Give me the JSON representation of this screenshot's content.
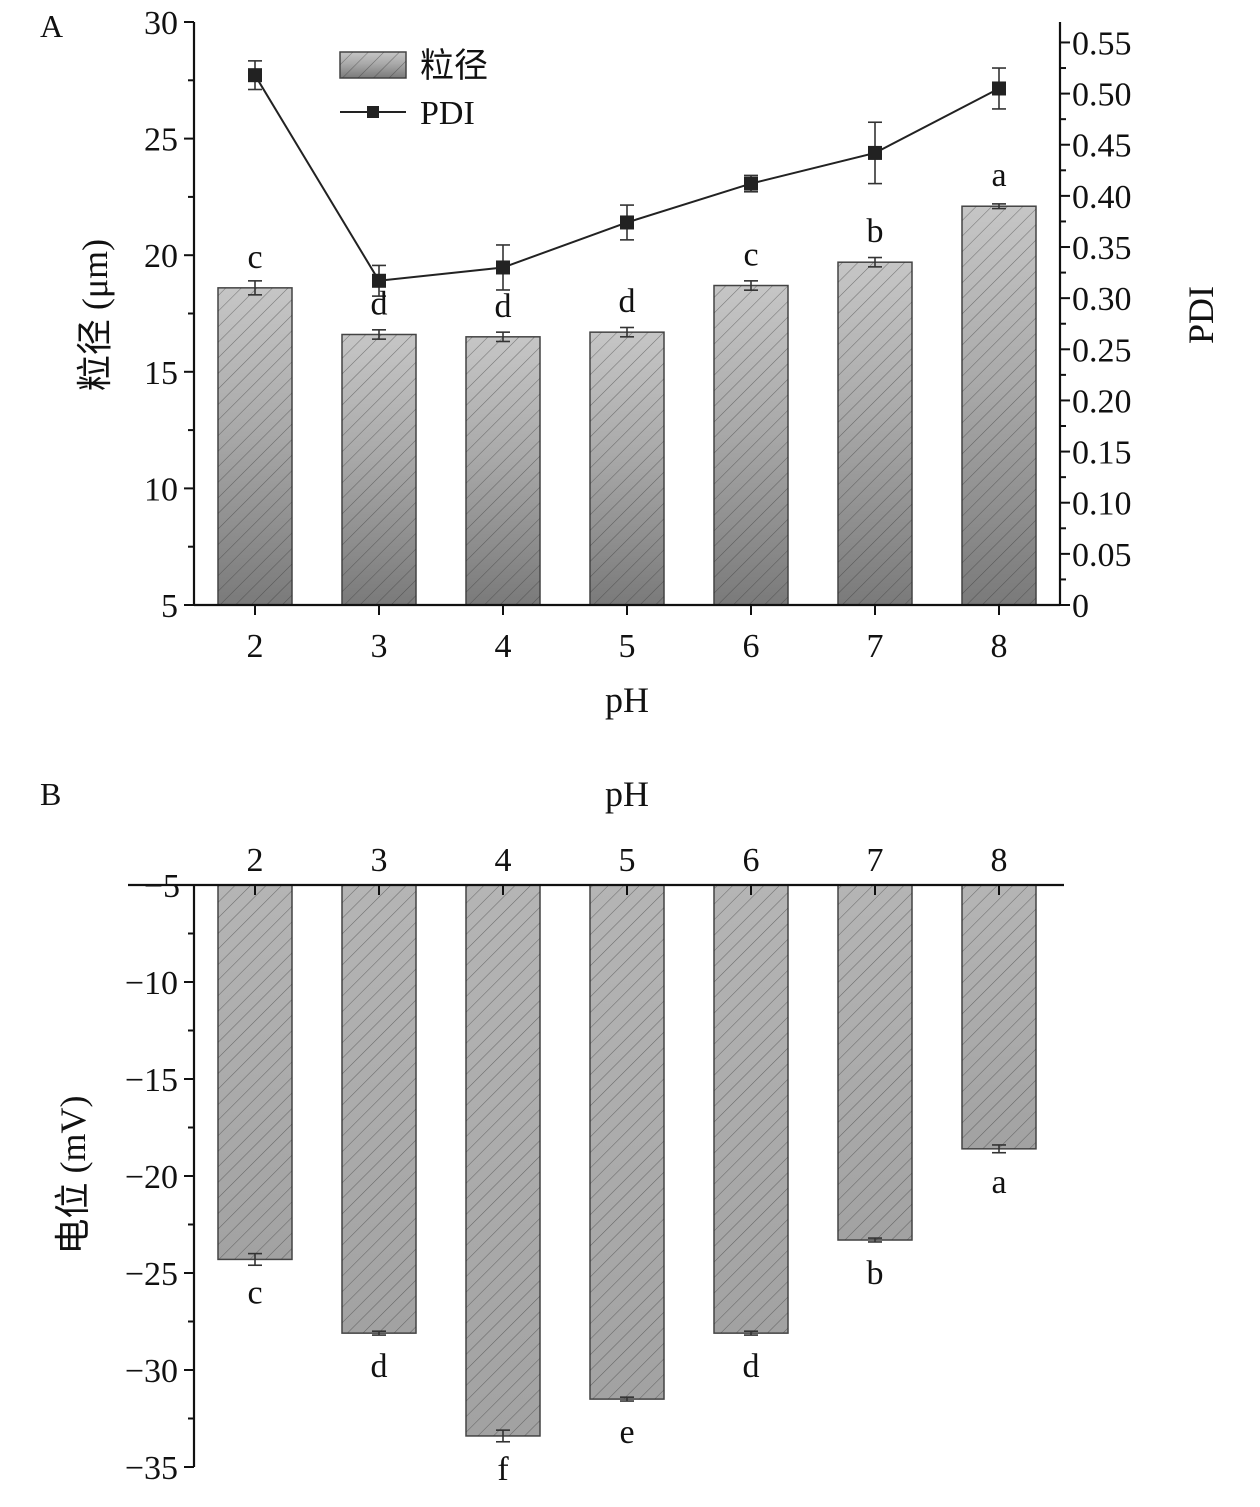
{
  "chart_data": [
    {
      "panel": "A",
      "type": "bar",
      "xlabel": "pH",
      "ylabel": "粒径 (μm)",
      "y2label": "PDI",
      "categories": [
        "2",
        "3",
        "4",
        "5",
        "6",
        "7",
        "8"
      ],
      "ylim": [
        5,
        30
      ],
      "yticks": [
        "5",
        "10",
        "15",
        "20",
        "25",
        "30"
      ],
      "y2lim": [
        0,
        0.57
      ],
      "y2ticks": [
        "0",
        "0.05",
        "0.10",
        "0.15",
        "0.20",
        "0.25",
        "0.30",
        "0.35",
        "0.40",
        "0.45",
        "0.50",
        "0.55"
      ],
      "legend": {
        "position": "top-left",
        "bar_label": "粒径",
        "line_label": "PDI"
      },
      "series": [
        {
          "name": "粒径",
          "kind": "bar",
          "axis": "left",
          "values": [
            18.6,
            16.6,
            16.5,
            16.7,
            18.7,
            19.7,
            22.1
          ],
          "errors": [
            0.3,
            0.2,
            0.2,
            0.2,
            0.2,
            0.2,
            0.1
          ],
          "letters": [
            "c",
            "d",
            "d",
            "d",
            "c",
            "b",
            "a"
          ]
        },
        {
          "name": "PDI",
          "kind": "line",
          "axis": "right",
          "values": [
            0.518,
            0.317,
            0.33,
            0.374,
            0.412,
            0.442,
            0.505
          ],
          "errors": [
            0.014,
            0.015,
            0.022,
            0.017,
            0.008,
            0.03,
            0.02
          ]
        }
      ]
    },
    {
      "panel": "B",
      "type": "bar",
      "xlabel": "pH",
      "ylabel": "电位 (mV)",
      "xaxis_position": "top",
      "categories": [
        "2",
        "3",
        "4",
        "5",
        "6",
        "7",
        "8"
      ],
      "ylim": [
        -35,
        -5
      ],
      "yticks": [
        "−5",
        "−10",
        "−15",
        "−20",
        "−25",
        "−30",
        "−35"
      ],
      "series": [
        {
          "name": "电位",
          "values": [
            -24.3,
            -28.1,
            -33.4,
            -31.5,
            -28.1,
            -23.3,
            -18.6
          ],
          "errors": [
            0.3,
            0.1,
            0.3,
            0.1,
            0.1,
            0.1,
            0.2
          ],
          "letters": [
            "c",
            "d",
            "f",
            "e",
            "d",
            "b",
            "a"
          ]
        }
      ]
    }
  ]
}
